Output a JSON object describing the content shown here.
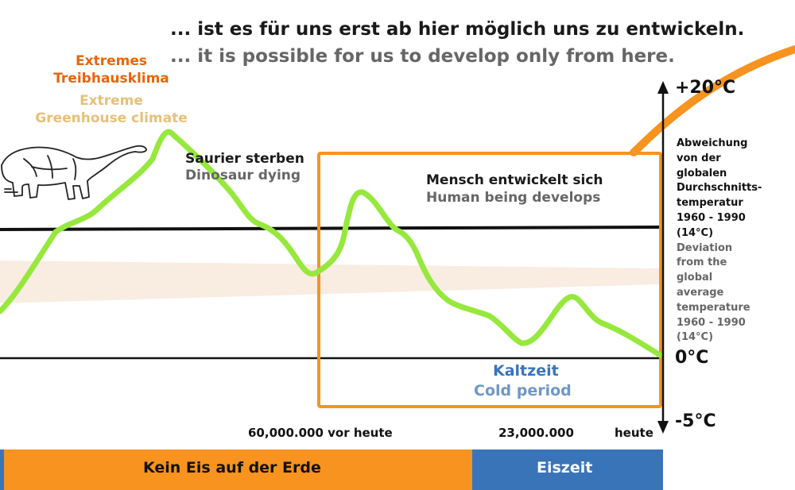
{
  "header": {
    "line_de": "... ist es für uns erst ab hier möglich uns zu entwickeln.",
    "line_en": "... it is possible for us to develop only from here."
  },
  "greenhouse": {
    "de_line1": "Extremes",
    "de_line2": "Treibhausklima",
    "en_line1": "Extreme",
    "en_line2": "Greenhouse climate",
    "color_de": "#e8650a",
    "color_en": "#e9bf78"
  },
  "dinosaur": {
    "label_de": "Saurier sterben",
    "label_en": "Dinosaur dying",
    "icon": "dinosaur-sketch-icon"
  },
  "human": {
    "label_de": "Mensch entwickelt sich",
    "label_en": "Human being develops"
  },
  "cold": {
    "label_de": "Kaltzeit",
    "label_en": "Cold period",
    "color_de": "#3a74b8",
    "color_en": "#6f97c7"
  },
  "axis": {
    "top_label": "+20°C",
    "zero_label": "0°C",
    "bottom_label": "-5°C",
    "deviation_de": [
      "Abweichung",
      "von der",
      "globalen",
      "Durchschnitts-",
      "temperatur",
      "1960 - 1990",
      "(14°C)"
    ],
    "deviation_en": [
      "Deviation",
      "from the",
      "global",
      "average",
      "temperature",
      "1960 - 1990",
      "(14°C)"
    ]
  },
  "timeline": {
    "label_60m": "60,000.000 vor heute",
    "label_23m": "23,000.000",
    "label_today": "heute"
  },
  "bottom_bar": {
    "no_ice_label": "Kein Eis auf der Erde",
    "ice_age_label": "Eiszeit",
    "no_ice_color": "#f7931e",
    "ice_age_color": "#3a74b8"
  },
  "colors": {
    "curve": "#96e83c",
    "highlight_box": "#f7931e",
    "band": "#f9ece1"
  }
}
